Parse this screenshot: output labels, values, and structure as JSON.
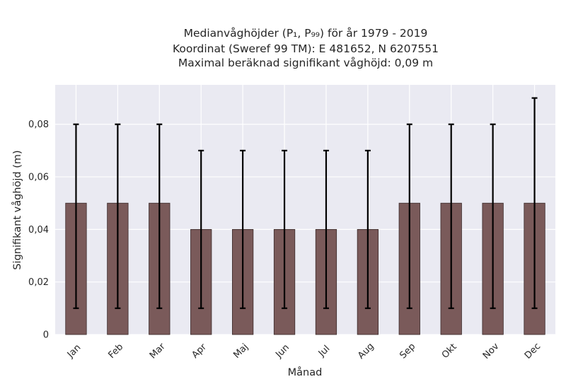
{
  "chart_data": {
    "type": "bar",
    "title_lines": [
      "Medianvåghöjder (P₁, P₉₉) för år 1979 - 2019",
      "Koordinat (Sweref 99 TM): E 481652, N 6207551",
      "Maximal beräknad signifikant våghöjd: 0,09 m"
    ],
    "xlabel": "Månad",
    "ylabel": "Signifikant våghöjd (m)",
    "categories": [
      "Jan",
      "Feb",
      "Mar",
      "Apr",
      "Maj",
      "Jun",
      "Jul",
      "Aug",
      "Sep",
      "Okt",
      "Nov",
      "Dec"
    ],
    "values": [
      0.05,
      0.05,
      0.05,
      0.04,
      0.04,
      0.04,
      0.04,
      0.04,
      0.05,
      0.05,
      0.05,
      0.05
    ],
    "err_low": [
      0.01,
      0.01,
      0.01,
      0.01,
      0.01,
      0.01,
      0.01,
      0.01,
      0.01,
      0.01,
      0.01,
      0.01
    ],
    "err_high": [
      0.08,
      0.08,
      0.08,
      0.07,
      0.07,
      0.07,
      0.07,
      0.07,
      0.08,
      0.08,
      0.08,
      0.09
    ],
    "ylim": [
      0,
      0.095
    ],
    "yticks": [
      0,
      0.02,
      0.04,
      0.06,
      0.08
    ],
    "ytick_labels": [
      "0",
      "0,02",
      "0,04",
      "0,06",
      "0,08"
    ],
    "grid": true,
    "colors": {
      "bar": "#7a5a5a",
      "bar_edge": "#3a2a2a",
      "plot_background": "#eaeaf2",
      "grid": "#ffffff",
      "error_bar": "#000000"
    }
  }
}
